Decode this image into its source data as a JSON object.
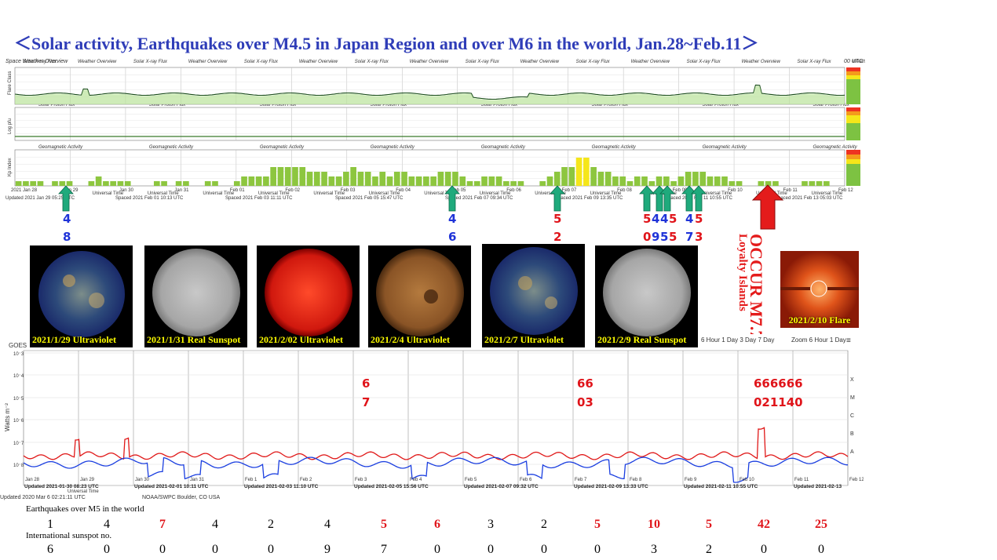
{
  "title": "＜Solar activity, Earthquakes over M4.5 in Japan Region and over M6 in the world,   Jan.28~Feb.11＞",
  "overview_panel": {
    "header_left": "Space Weather Overview",
    "header_right": "00 UTC",
    "xray_label": "Solar X-ray Flux",
    "proton_label": "Solar Proton Flux",
    "geomag_label": "Geomagnetic Activity",
    "y1": "Flare Class",
    "y2": "Log pfu",
    "y3": "Kp Index",
    "date_ticks": [
      "2021 Jan 28",
      "Jan 29",
      "Jan 30",
      "Jan 31",
      "Feb 01",
      "Feb 02",
      "Feb 03",
      "Feb 04",
      "Feb 05",
      "Feb 06",
      "Feb 07",
      "Feb 08",
      "Feb 09",
      "Feb 10",
      "Feb 11",
      "Feb 12"
    ],
    "updated": [
      "Updated 2021 Jan 29 05:25 UTC",
      "Spaced 2021 Feb 01 10:13 UTC",
      "Spaced 2021 Feb 03 11:11 UTC",
      "Spaced 2021 Feb 05 15:47 UTC",
      "Spaced 2021 Feb 07 09:34 UTC",
      "Spaced 2021 Feb 09 13:35 UTC",
      "Spaced 2021 Feb 11 10:55 UTC",
      "Spaced 2021 Feb 13 05:03 UTC"
    ],
    "universal_time": "Universal Time",
    "kp_index": [
      1,
      1,
      1,
      1,
      0,
      1,
      1,
      1,
      0,
      0,
      1,
      2,
      1,
      1,
      1,
      1,
      0,
      0,
      0,
      1,
      1,
      0,
      1,
      1,
      0,
      0,
      1,
      1,
      0,
      0,
      1,
      2,
      2,
      2,
      2,
      4,
      4,
      4,
      4,
      4,
      3,
      3,
      3,
      2,
      2,
      3,
      4,
      3,
      3,
      2,
      3,
      2,
      3,
      3,
      2,
      2,
      2,
      2,
      3,
      3,
      3,
      2,
      1,
      1,
      2,
      2,
      2,
      1,
      1,
      1,
      0,
      0,
      1,
      2,
      3,
      4,
      4,
      6,
      6,
      4,
      3,
      3,
      2,
      2,
      1,
      2,
      2,
      1,
      2,
      2,
      1,
      2,
      3,
      3,
      3,
      2,
      2,
      2,
      1,
      1,
      0,
      0,
      1,
      1,
      1,
      0,
      0,
      0,
      1,
      1,
      1,
      1,
      0,
      0
    ]
  },
  "arrow_markers": [
    {
      "kind": "green",
      "top": "4",
      "bottom": "8",
      "color_top": "blue",
      "color_bottom": "blue"
    },
    {
      "kind": "green",
      "top": "4",
      "bottom": "6",
      "color_top": "blue",
      "color_bottom": "blue"
    },
    {
      "kind": "green",
      "top": "5",
      "bottom": "2",
      "color_top": "red",
      "color_bottom": "red"
    },
    {
      "kind": "green",
      "top": "5445",
      "bottom": "0955",
      "color_top": "mixed",
      "color_bottom": "mixed"
    },
    {
      "kind": "green",
      "top": "45",
      "bottom": "73",
      "color_top": "mixed",
      "color_bottom": "mixed"
    }
  ],
  "marker_texts": {
    "m1_top": "4",
    "m1_bottom": "8",
    "m2_top": "4",
    "m2_bottom": "6",
    "m3_top": "5",
    "m3_bottom": "2",
    "m4_top_a": "5",
    "m4_top_b": "4",
    "m4_top_c": "4",
    "m4_top_d": "5",
    "m4_bot_a": "0",
    "m4_bot_b": "9",
    "m4_bot_c": "5",
    "m4_bot_d": "5",
    "m5_top_a": "4",
    "m5_top_b": "5",
    "m5_bot_a": "7",
    "m5_bot_b": "3"
  },
  "occur": {
    "line1": "OCCUR M7.7",
    "line2": "Loyalty Islands"
  },
  "thumbnails": [
    {
      "caption": "2021/1/29 Ultraviolet",
      "kind": "uv-blue"
    },
    {
      "caption": "2021/1/31 Real Sunspot",
      "kind": "gray"
    },
    {
      "caption": "2021/2/02 Ultraviolet",
      "kind": "red"
    },
    {
      "caption": "2021/2/4 Ultraviolet",
      "kind": "orange"
    },
    {
      "caption": "2021/2/7 Ultraviolet",
      "kind": "uv-blue"
    },
    {
      "caption": "2021/2/9 Real Sunspot",
      "kind": "gray"
    },
    {
      "caption": "2021/2/10 Flare",
      "kind": "coronagraph"
    }
  ],
  "goes_panel": {
    "goes_label": "GOES",
    "y_label": "Watts m⁻²",
    "classes": [
      "X",
      "M",
      "C",
      "B",
      "A"
    ],
    "zoom_1": "Zoom 6 Hour 1 Day",
    "zoom_tabs": "6 Hour  1 Day  3 Day  7 Day",
    "zoom_2": "Zoom 6 Hour 1 Day",
    "day_ticks": [
      "Jan 28",
      "Jan 29",
      "Jan 30",
      "Jan 31",
      "Feb 1",
      "Feb 2",
      "Feb 3",
      "Feb 4",
      "Feb 5",
      "Feb 6",
      "Feb 7",
      "Feb 8",
      "Feb 9",
      "Feb 10",
      "Feb 11",
      "Feb 12"
    ],
    "updated": [
      "Updated 2021-01-30 08:23 UTC",
      "Updated 2021-02-01 10:11 UTC",
      "Updated 2021-02-03 11:10 UTC",
      "Updated 2021-02-05 15:56 UTC",
      "Updated 2021-02-07 09:32 UTC",
      "Updated 2021-02-09 13:33 UTC",
      "Updated 2021-02-11 10:55 UTC",
      "Updated 2021-02-13"
    ],
    "universal_time": "Universal Time",
    "footer_left": "Updated 2020 Mar  6 02:21:11 UTC",
    "footer_right": "NOAA/SWPC Boulder, CO USA"
  },
  "red_markers": {
    "r1_top": "6",
    "r1_bottom": "7",
    "r2_top": "66",
    "r2_bottom": "03",
    "r3_top": "666666",
    "r3_bottom": "021140"
  },
  "bottom_table": {
    "eq_label": "Earthquakes over M5 in the world",
    "ss_label": "International sunspot no.",
    "eq_values": [
      "1",
      "4",
      "7",
      "4",
      "2",
      "4",
      "5",
      "6",
      "3",
      "2",
      "5",
      "10",
      "5",
      "42",
      "25"
    ],
    "eq_colors": [
      "black",
      "black",
      "red",
      "black",
      "black",
      "black",
      "red",
      "red",
      "black",
      "black",
      "red",
      "red",
      "red",
      "red",
      "red"
    ],
    "ss_values": [
      "6",
      "0",
      "0",
      "0",
      "0",
      "9",
      "7",
      "0",
      "0",
      "0",
      "0",
      "3",
      "2",
      "0",
      "0"
    ]
  },
  "colors": {
    "title": "#2f3db8",
    "kp_green": "#8dc63f",
    "kp_yellow": "#f5e61a",
    "arrow_green": "#1faa7c",
    "arrow_red": "#e41b1b",
    "xray_long": "#e01818",
    "xray_short": "#1a3ee0"
  }
}
